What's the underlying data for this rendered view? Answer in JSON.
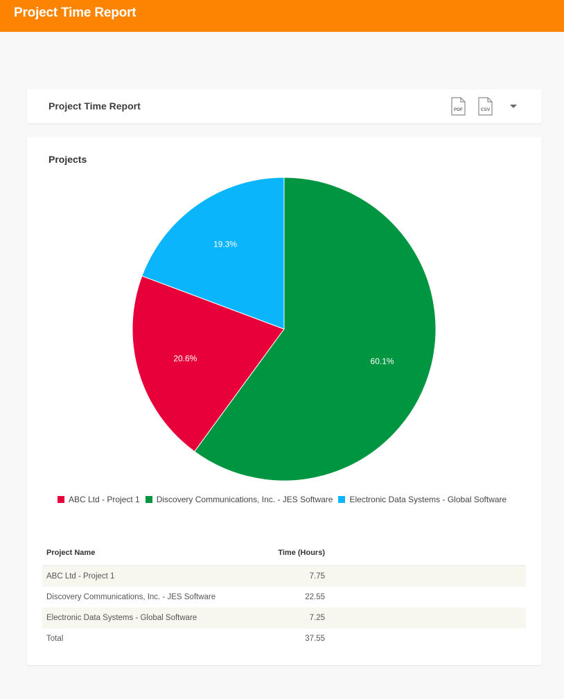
{
  "app": {
    "title": "Project Time Report",
    "brand_color": "#fd8402"
  },
  "report_header": {
    "title": "Project Time Report",
    "pdf_icon_label": "PDF",
    "csv_icon_label": "CSV",
    "dropdown_icon": "chevron-down-icon"
  },
  "projects_section": {
    "title": "Projects"
  },
  "chart_data": {
    "type": "pie",
    "title": "Projects",
    "slices": [
      {
        "label": "ABC Ltd - Project 1",
        "value": 7.75,
        "percent_label": "20.6%",
        "color": "#e8003a"
      },
      {
        "label": "Discovery Communications, Inc. - JES Software",
        "value": 22.55,
        "percent_label": "60.1%",
        "color": "#009641"
      },
      {
        "label": "Electronic Data Systems - Global Software",
        "value": 7.25,
        "percent_label": "19.3%",
        "color": "#0bb5fb"
      }
    ],
    "legend_position": "bottom"
  },
  "table": {
    "columns": [
      "Project Name",
      "Time (Hours)"
    ],
    "rows": [
      {
        "name": "ABC Ltd - Project 1",
        "hours": "7.75"
      },
      {
        "name": "Discovery Communications, Inc. - JES Software",
        "hours": "22.55"
      },
      {
        "name": "Electronic Data Systems - Global Software",
        "hours": "7.25"
      }
    ],
    "total": {
      "label": "Total",
      "hours": "37.55"
    }
  }
}
